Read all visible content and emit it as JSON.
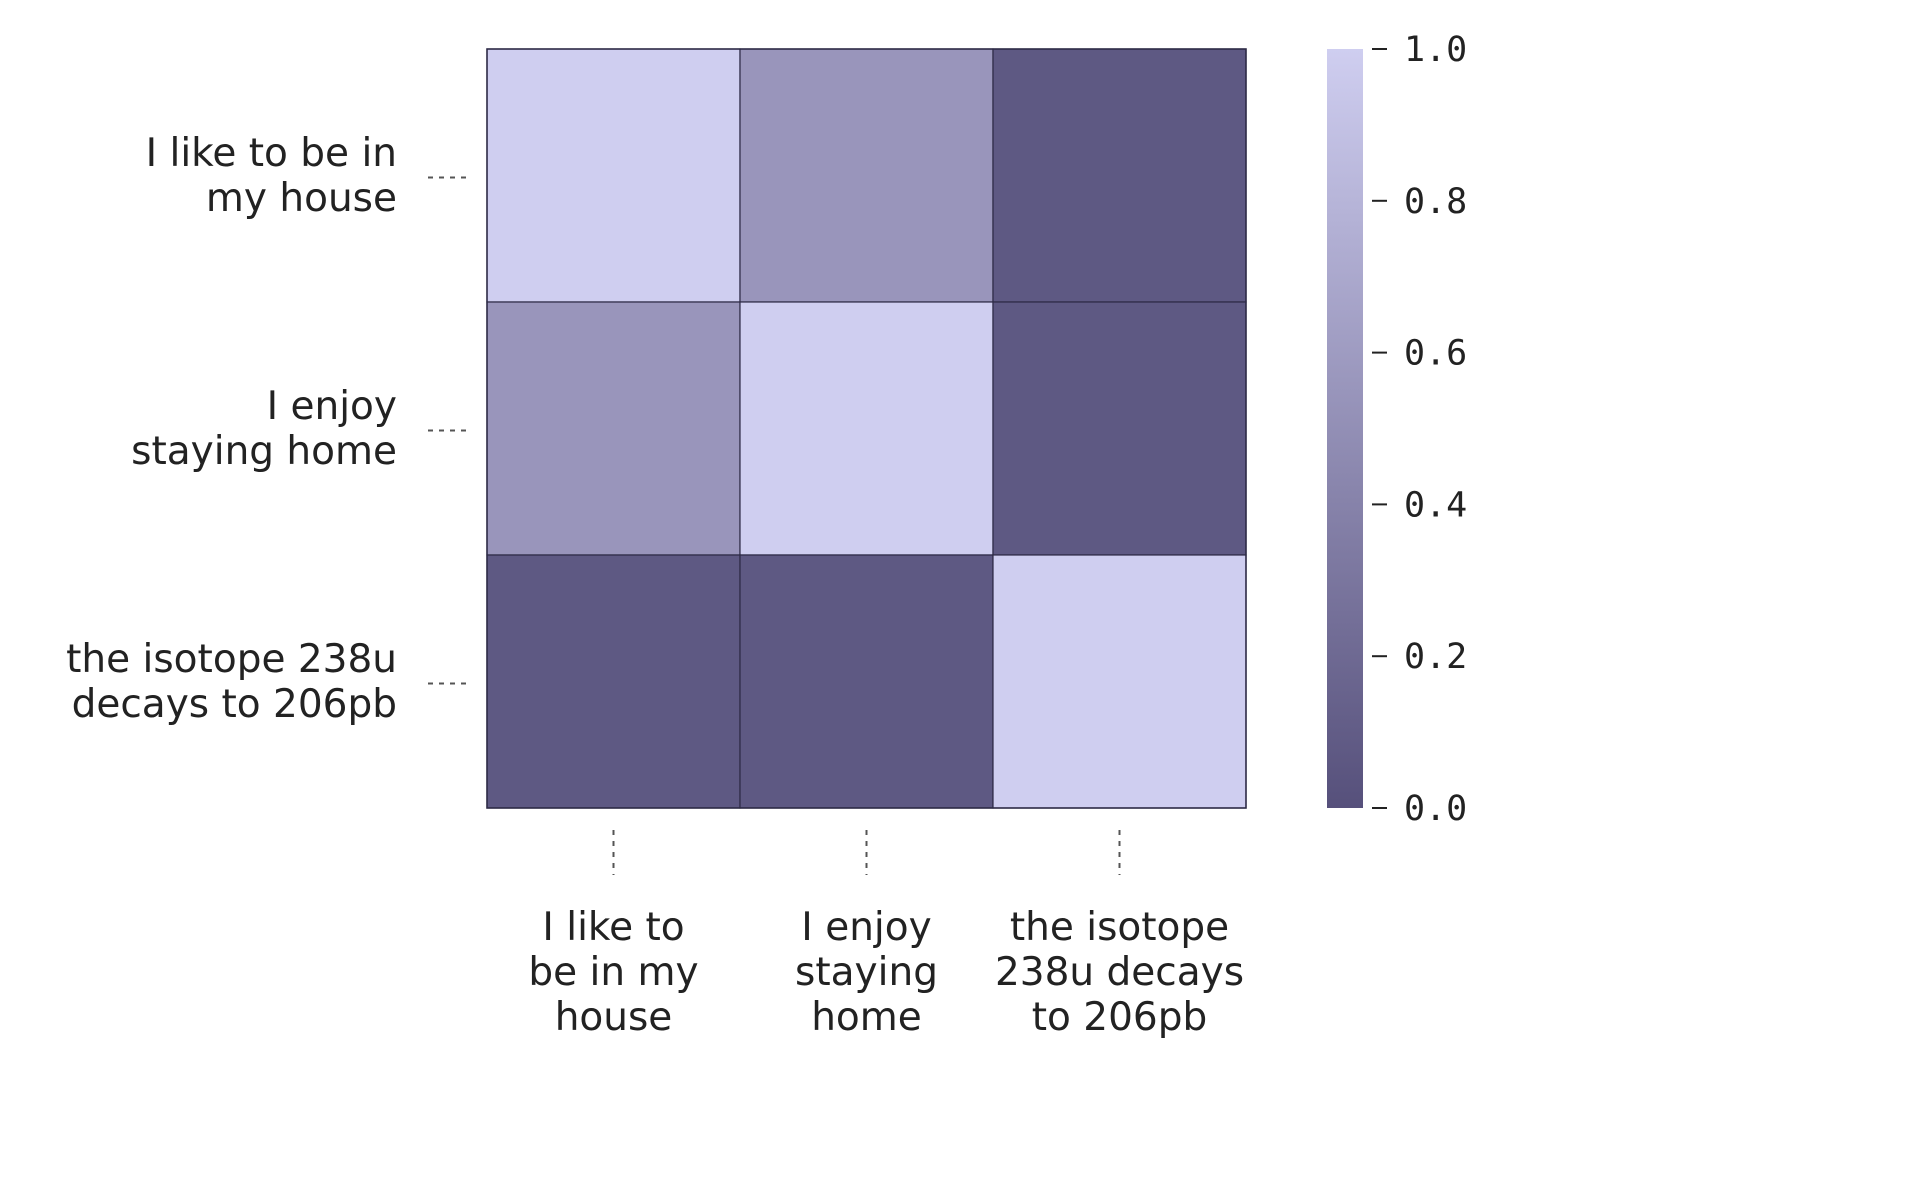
{
  "chart_data": {
    "type": "heatmap",
    "title": "",
    "xlabel": "",
    "ylabel": "",
    "rows": [
      [
        "I like to be in",
        "my house"
      ],
      [
        "I enjoy",
        "staying home"
      ],
      [
        "the isotope 238u",
        "decays to 206pb"
      ]
    ],
    "columns": [
      [
        "I like to",
        "be in my",
        "house"
      ],
      [
        "I enjoy",
        "staying",
        "home"
      ],
      [
        "the isotope",
        "238u decays",
        "to 206pb"
      ]
    ],
    "values": [
      [
        1.0,
        0.55,
        0.07
      ],
      [
        0.55,
        1.0,
        0.07
      ],
      [
        0.07,
        0.07,
        1.0
      ]
    ],
    "colorbar": {
      "min": 0.0,
      "max": 1.0,
      "ticks": [
        "0.0",
        "0.2",
        "0.4",
        "0.6",
        "0.8",
        "1.0"
      ],
      "low_color": "#56507b",
      "high_color": "#cfcef0"
    },
    "grid": false,
    "legend": "colorbar-right"
  }
}
